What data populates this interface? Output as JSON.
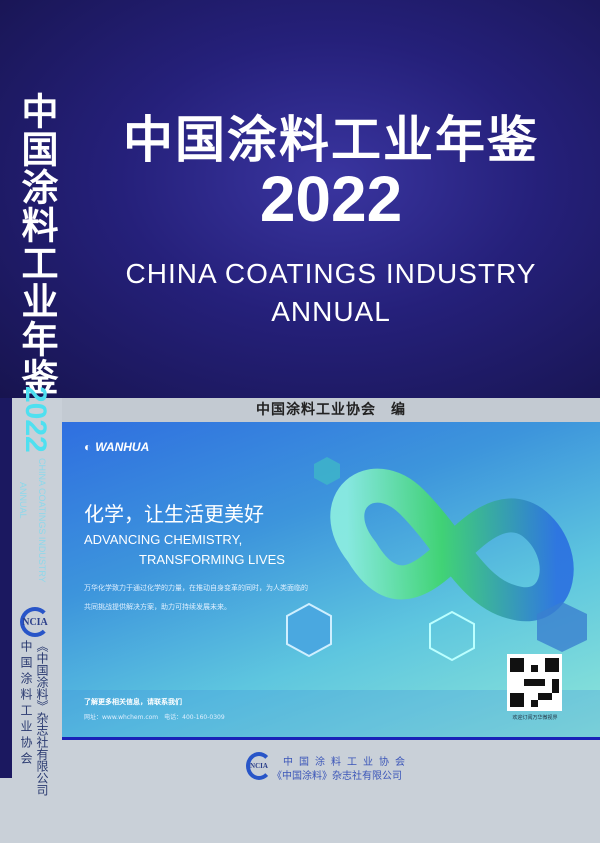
{
  "cover": {
    "title_cn": "中国涂料工业年鉴",
    "year": "2022",
    "title_en_line1": "CHINA COATINGS INDUSTRY",
    "title_en_line2": "ANNUAL",
    "editor": "中国涂料工业协会　编"
  },
  "spine": {
    "title_cn": "中国涂料工业年鉴",
    "year": "2022",
    "title_en_line1": "CHINA COATINGS INDUSTRY",
    "title_en_line2": "ANNUAL",
    "logo": "NCIA",
    "publisher1": "《中国涂料》杂志社有限公司",
    "publisher2": "中国涂料工业协会"
  },
  "ad": {
    "brand": "WANHUA",
    "slogan_cn": "化学，让生活更美好",
    "slogan_en_line1": "ADVANCING CHEMISTRY,",
    "slogan_en_line2": "TRANSFORMING LIVES",
    "description": "万华化学致力于通过化学的力量，在推动自身变革的同时，为人类面临的共同挑战提供解决方案，助力可持续发展未来。",
    "contact_title": "了解更多相关信息，请联系我们",
    "contact_info": "网址：www.whchem.com　电话：400-160-0309",
    "qr_caption": "欢迎订阅万华微视界"
  },
  "footer": {
    "logo": "NCIA",
    "publisher1": "中国涂料工业协会",
    "publisher2": "《中国涂料》杂志社有限公司"
  },
  "colors": {
    "navy": "#25207a",
    "accent_cyan": "#4fe0f0",
    "publisher_blue": "#3a55b8"
  }
}
